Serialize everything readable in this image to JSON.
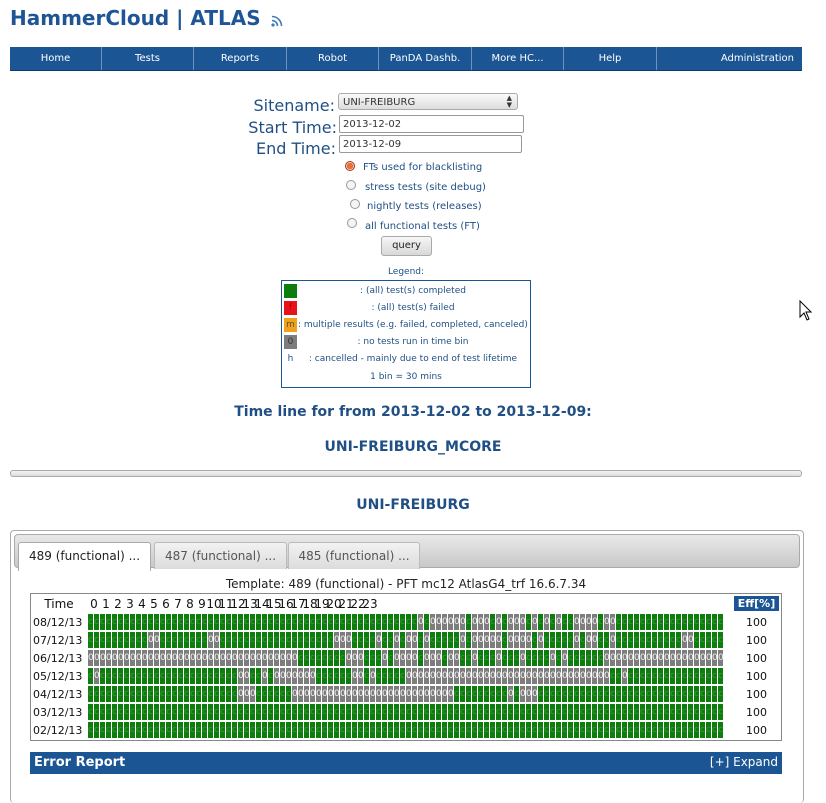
{
  "header": {
    "title": "HammerCloud | ATLAS"
  },
  "nav": [
    "Home",
    "Tests",
    "Reports",
    "Robot",
    "PanDA Dashb.",
    "More HC...",
    "Help",
    "Administration"
  ],
  "form": {
    "sitename_label": "Sitename:",
    "sitename_value": "UNI-FREIBURG",
    "start_label": "Start Time:",
    "start_value": "2013-12-02",
    "end_label": "End Time:",
    "end_value": "2013-12-09",
    "options": [
      {
        "label": "FTs used for blacklisting",
        "checked": true
      },
      {
        "label": "stress tests (site debug)",
        "checked": false
      },
      {
        "label": "nightly tests (releases)",
        "checked": false
      },
      {
        "label": "all functional tests (FT)",
        "checked": false
      }
    ],
    "query_label": "query"
  },
  "legend": {
    "title": "Legend:",
    "items": [
      {
        "swatch": "",
        "color": "#0d7d0d",
        "text": ": (all) test(s) completed"
      },
      {
        "swatch": "f",
        "color": "#e8121b",
        "text": ": (all) test(s) failed"
      },
      {
        "swatch": "m",
        "color": "#f0a21d",
        "text": ": multiple results (e.g. failed, completed, canceled)"
      },
      {
        "swatch": "0",
        "color": "#7d7d7d",
        "text": ": no tests run in time bin"
      },
      {
        "swatch": "h",
        "color": "#ffffff",
        "text": ": cancelled - mainly due to end of test lifetime"
      },
      {
        "swatch": "",
        "color": "#ffffff",
        "text": "1 bin = 30 mins"
      }
    ]
  },
  "timeline_heading": "Time line for from 2013-12-02 to 2013-12-09:",
  "site_mcore": "UNI-FREIBURG_MCORE",
  "site": "UNI-FREIBURG",
  "tabs": [
    "489 (functional) ...",
    "487 (functional) ...",
    "485 (functional) ..."
  ],
  "template_label": "Template: 489 (functional) - PFT mc12 AtlasG4_trf 16.6.7.34",
  "timeline": {
    "time_label": "Time",
    "hours": [
      "0",
      "1",
      "2",
      "3",
      "4",
      "5",
      "6",
      "7",
      "8",
      "9",
      "10",
      "11",
      "12",
      "13",
      "14",
      "15",
      "16",
      "17",
      "18",
      "19",
      "20",
      "21",
      "22",
      "23"
    ],
    "eff_label": "Eff[%]",
    "rows": [
      {
        "date": "08/12/13",
        "eff": "100",
        "bins": "ccccccccccccccccccccccccccccccccccccccccccccccccccccccc0c000000c000c0c000c0c0c0cc0000c00"
      },
      {
        "date": "07/12/13",
        "eff": "100",
        "bins": "cccccccccc00cccccccc00ccccccccccccccccccc000cccc0cc0c00c0ccccc0c00000c0000c0ccccc0c00cc0c"
      },
      {
        "date": "06/12/13",
        "eff": "100",
        "bins": "00000000000000000000000000000000000cccccccc000ccc0c0000c000c00cc0ccc0ccc0cccc0c0cccccc"
      },
      {
        "date": "05/12/13",
        "eff": "100",
        "bins": "c0ccccccccccccccccccccccc00cc0c0000000cccccc00c0ccccc0000000000000000000000000000000000c"
      },
      {
        "date": "04/12/13",
        "eff": "100",
        "bins": "ccccccccccccccccccccccccc000cccccc000000000000000000000000000ccccccccc0c000ccccccccccccc"
      },
      {
        "date": "03/12/13",
        "eff": "100",
        "bins": "cccccccccccccccccccccccccccccccccccccccccccccccccccccccccccccccccccccccccccccccccccccccc"
      },
      {
        "date": "02/12/13",
        "eff": "100",
        "bins": "cccccccccccccccccccccccccccccccccccccccccccccccccccccccccccccccccccccccccccccccccccccccc"
      }
    ]
  },
  "error_report": {
    "title": "Error Report",
    "expand": "[+] Expand"
  }
}
